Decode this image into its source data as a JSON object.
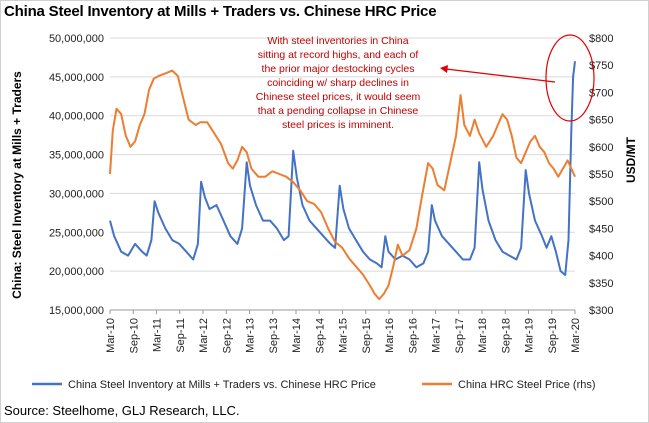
{
  "chart_data": {
    "type": "line",
    "title": "China Steel Inventory at Mills + Traders vs. Chinese HRC Price",
    "ylabel": "China: Steel Inventory at Mills + Traders",
    "y2label": "USD/MT",
    "ylim": [
      15000000,
      50000000
    ],
    "y2lim": [
      300,
      800
    ],
    "yticks": [
      "15,000,000",
      "20,000,000",
      "25,000,000",
      "30,000,000",
      "35,000,000",
      "40,000,000",
      "45,000,000",
      "50,000,000"
    ],
    "y2ticks": [
      "$300",
      "$350",
      "$400",
      "$450",
      "$500",
      "$550",
      "$600",
      "$650",
      "$700",
      "$750",
      "$800"
    ],
    "xticks": [
      "Mar-10",
      "Sep-10",
      "Mar-11",
      "Sep-11",
      "Mar-12",
      "Sep-12",
      "Mar-13",
      "Sep-13",
      "Mar-14",
      "Sep-14",
      "Mar-15",
      "Sep-15",
      "Mar-16",
      "Sep-16",
      "Mar-17",
      "Sep-17",
      "Mar-18",
      "Sep-18",
      "Mar-19",
      "Sep-19",
      "Mar-20"
    ],
    "x_start": 2010.16,
    "x_end": 2020.16,
    "series": [
      {
        "name": "China Steel Inventory at Mills + Traders vs. Chinese HRC Price",
        "axis": "left",
        "color": "#4472c4",
        "points": [
          [
            2010.16,
            26500000
          ],
          [
            2010.25,
            24500000
          ],
          [
            2010.4,
            22500000
          ],
          [
            2010.55,
            22000000
          ],
          [
            2010.7,
            23500000
          ],
          [
            2010.85,
            22500000
          ],
          [
            2010.95,
            22000000
          ],
          [
            2011.05,
            24000000
          ],
          [
            2011.12,
            29000000
          ],
          [
            2011.2,
            27500000
          ],
          [
            2011.35,
            25500000
          ],
          [
            2011.5,
            24000000
          ],
          [
            2011.65,
            23500000
          ],
          [
            2011.8,
            22500000
          ],
          [
            2011.95,
            21500000
          ],
          [
            2012.05,
            23500000
          ],
          [
            2012.12,
            31500000
          ],
          [
            2012.2,
            29500000
          ],
          [
            2012.3,
            28000000
          ],
          [
            2012.45,
            28500000
          ],
          [
            2012.6,
            26500000
          ],
          [
            2012.75,
            24500000
          ],
          [
            2012.9,
            23500000
          ],
          [
            2013.0,
            25500000
          ],
          [
            2013.1,
            34000000
          ],
          [
            2013.17,
            31000000
          ],
          [
            2013.3,
            28500000
          ],
          [
            2013.45,
            26500000
          ],
          [
            2013.6,
            26500000
          ],
          [
            2013.75,
            25500000
          ],
          [
            2013.9,
            24000000
          ],
          [
            2014.0,
            24500000
          ],
          [
            2014.1,
            35500000
          ],
          [
            2014.18,
            32000000
          ],
          [
            2014.3,
            28500000
          ],
          [
            2014.45,
            26500000
          ],
          [
            2014.6,
            25500000
          ],
          [
            2014.75,
            24500000
          ],
          [
            2014.9,
            23500000
          ],
          [
            2015.0,
            23000000
          ],
          [
            2015.1,
            31000000
          ],
          [
            2015.18,
            28000000
          ],
          [
            2015.3,
            25500000
          ],
          [
            2015.45,
            24000000
          ],
          [
            2015.6,
            22500000
          ],
          [
            2015.75,
            21500000
          ],
          [
            2015.9,
            21000000
          ],
          [
            2016.0,
            20500000
          ],
          [
            2016.08,
            24500000
          ],
          [
            2016.15,
            22500000
          ],
          [
            2016.3,
            21500000
          ],
          [
            2016.45,
            22000000
          ],
          [
            2016.6,
            21500000
          ],
          [
            2016.75,
            20500000
          ],
          [
            2016.9,
            21000000
          ],
          [
            2017.0,
            22500000
          ],
          [
            2017.08,
            28500000
          ],
          [
            2017.15,
            26500000
          ],
          [
            2017.3,
            24500000
          ],
          [
            2017.45,
            23500000
          ],
          [
            2017.6,
            22500000
          ],
          [
            2017.75,
            21500000
          ],
          [
            2017.9,
            21500000
          ],
          [
            2018.0,
            23000000
          ],
          [
            2018.1,
            34000000
          ],
          [
            2018.17,
            30500000
          ],
          [
            2018.3,
            26500000
          ],
          [
            2018.45,
            24000000
          ],
          [
            2018.6,
            22500000
          ],
          [
            2018.75,
            22000000
          ],
          [
            2018.9,
            21500000
          ],
          [
            2019.0,
            23000000
          ],
          [
            2019.1,
            33000000
          ],
          [
            2019.17,
            30000000
          ],
          [
            2019.3,
            26500000
          ],
          [
            2019.45,
            24500000
          ],
          [
            2019.55,
            23000000
          ],
          [
            2019.65,
            24500000
          ],
          [
            2019.75,
            22500000
          ],
          [
            2019.85,
            20000000
          ],
          [
            2019.95,
            19500000
          ],
          [
            2020.02,
            24000000
          ],
          [
            2020.08,
            38000000
          ],
          [
            2020.12,
            45000000
          ],
          [
            2020.16,
            47000000
          ]
        ]
      },
      {
        "name": "China HRC Steel Price (rhs)",
        "axis": "right",
        "color": "#ed7d31",
        "points": [
          [
            2010.16,
            550
          ],
          [
            2010.22,
            630
          ],
          [
            2010.3,
            670
          ],
          [
            2010.4,
            660
          ],
          [
            2010.5,
            620
          ],
          [
            2010.6,
            600
          ],
          [
            2010.7,
            610
          ],
          [
            2010.8,
            640
          ],
          [
            2010.9,
            660
          ],
          [
            2011.0,
            705
          ],
          [
            2011.1,
            725
          ],
          [
            2011.2,
            730
          ],
          [
            2011.35,
            735
          ],
          [
            2011.5,
            740
          ],
          [
            2011.62,
            730
          ],
          [
            2011.72,
            695
          ],
          [
            2011.85,
            650
          ],
          [
            2012.0,
            640
          ],
          [
            2012.1,
            645
          ],
          [
            2012.25,
            645
          ],
          [
            2012.4,
            625
          ],
          [
            2012.55,
            605
          ],
          [
            2012.7,
            570
          ],
          [
            2012.8,
            560
          ],
          [
            2012.9,
            575
          ],
          [
            2013.0,
            600
          ],
          [
            2013.1,
            590
          ],
          [
            2013.2,
            560
          ],
          [
            2013.35,
            545
          ],
          [
            2013.5,
            545
          ],
          [
            2013.65,
            555
          ],
          [
            2013.8,
            550
          ],
          [
            2013.95,
            545
          ],
          [
            2014.1,
            535
          ],
          [
            2014.25,
            520
          ],
          [
            2014.4,
            500
          ],
          [
            2014.55,
            495
          ],
          [
            2014.7,
            480
          ],
          [
            2014.85,
            450
          ],
          [
            2015.0,
            425
          ],
          [
            2015.15,
            415
          ],
          [
            2015.3,
            395
          ],
          [
            2015.45,
            380
          ],
          [
            2015.6,
            365
          ],
          [
            2015.75,
            345
          ],
          [
            2015.85,
            330
          ],
          [
            2015.95,
            320
          ],
          [
            2016.05,
            330
          ],
          [
            2016.15,
            345
          ],
          [
            2016.25,
            380
          ],
          [
            2016.35,
            420
          ],
          [
            2016.45,
            400
          ],
          [
            2016.6,
            410
          ],
          [
            2016.75,
            450
          ],
          [
            2016.85,
            500
          ],
          [
            2017.0,
            570
          ],
          [
            2017.1,
            560
          ],
          [
            2017.2,
            530
          ],
          [
            2017.35,
            520
          ],
          [
            2017.5,
            580
          ],
          [
            2017.6,
            620
          ],
          [
            2017.7,
            695
          ],
          [
            2017.78,
            640
          ],
          [
            2017.9,
            620
          ],
          [
            2018.0,
            650
          ],
          [
            2018.1,
            625
          ],
          [
            2018.25,
            600
          ],
          [
            2018.4,
            620
          ],
          [
            2018.5,
            640
          ],
          [
            2018.6,
            660
          ],
          [
            2018.7,
            650
          ],
          [
            2018.8,
            620
          ],
          [
            2018.9,
            580
          ],
          [
            2019.0,
            570
          ],
          [
            2019.1,
            590
          ],
          [
            2019.2,
            610
          ],
          [
            2019.3,
            620
          ],
          [
            2019.4,
            600
          ],
          [
            2019.5,
            590
          ],
          [
            2019.6,
            570
          ],
          [
            2019.7,
            560
          ],
          [
            2019.8,
            545
          ],
          [
            2019.9,
            560
          ],
          [
            2020.0,
            575
          ],
          [
            2020.08,
            560
          ],
          [
            2020.16,
            545
          ]
        ]
      }
    ],
    "annotation": {
      "lines": [
        "With steel inventories in China",
        "sitting at record highs, and each of",
        "the prior major destocking cycles",
        "coinciding w/ sharp declines in",
        "Chinese steel prices, it would seem",
        "that a pending collapse in Chinese",
        "steel prices is imminent."
      ]
    }
  },
  "footer": {
    "source": "Source: Steelhome, GLJ Research, LLC."
  }
}
